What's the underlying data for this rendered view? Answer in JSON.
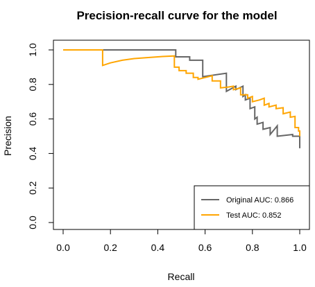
{
  "chart_data": {
    "type": "line",
    "title": "Precision-recall curve for the model",
    "xlabel": "Recall",
    "ylabel": "Precision",
    "xlim": [
      0,
      1
    ],
    "ylim": [
      0,
      1
    ],
    "xticks": [
      "0.0",
      "0.2",
      "0.4",
      "0.6",
      "0.8",
      "1.0"
    ],
    "yticks": [
      "0.0",
      "0.2",
      "0.4",
      "0.6",
      "0.8",
      "1.0"
    ],
    "xtick_values": [
      0,
      0.2,
      0.4,
      0.6,
      0.8,
      1.0
    ],
    "ytick_values": [
      0,
      0.2,
      0.4,
      0.6,
      0.8,
      1.0
    ],
    "legend_position": "bottom-right",
    "series": [
      {
        "name": "Original AUC: 0.866",
        "color": "#666666",
        "points": [
          [
            0.0,
            1.0
          ],
          [
            0.476,
            1.0
          ],
          [
            0.476,
            0.96
          ],
          [
            0.535,
            0.96
          ],
          [
            0.535,
            0.94
          ],
          [
            0.59,
            0.94
          ],
          [
            0.59,
            0.845
          ],
          [
            0.69,
            0.865
          ],
          [
            0.69,
            0.76
          ],
          [
            0.73,
            0.79
          ],
          [
            0.73,
            0.77
          ],
          [
            0.76,
            0.79
          ],
          [
            0.76,
            0.73
          ],
          [
            0.77,
            0.74
          ],
          [
            0.77,
            0.71
          ],
          [
            0.79,
            0.72
          ],
          [
            0.79,
            0.66
          ],
          [
            0.81,
            0.67
          ],
          [
            0.81,
            0.6
          ],
          [
            0.82,
            0.61
          ],
          [
            0.82,
            0.57
          ],
          [
            0.845,
            0.58
          ],
          [
            0.845,
            0.54
          ],
          [
            0.875,
            0.55
          ],
          [
            0.875,
            0.51
          ],
          [
            0.905,
            0.56
          ],
          [
            0.905,
            0.5
          ],
          [
            0.97,
            0.51
          ],
          [
            0.97,
            0.5
          ],
          [
            1.0,
            0.5
          ],
          [
            1.0,
            0.43
          ]
        ]
      },
      {
        "name": "Test AUC: 0.852",
        "color": "#FFA500",
        "points": [
          [
            0.0,
            1.0
          ],
          [
            0.167,
            1.0
          ],
          [
            0.167,
            0.91
          ],
          [
            0.2,
            0.925
          ],
          [
            0.25,
            0.94
          ],
          [
            0.3,
            0.95
          ],
          [
            0.35,
            0.955
          ],
          [
            0.42,
            0.962
          ],
          [
            0.47,
            0.965
          ],
          [
            0.47,
            0.9
          ],
          [
            0.49,
            0.9
          ],
          [
            0.49,
            0.88
          ],
          [
            0.52,
            0.88
          ],
          [
            0.52,
            0.865
          ],
          [
            0.55,
            0.865
          ],
          [
            0.55,
            0.84
          ],
          [
            0.57,
            0.84
          ],
          [
            0.57,
            0.83
          ],
          [
            0.6,
            0.84
          ],
          [
            0.63,
            0.85
          ],
          [
            0.63,
            0.82
          ],
          [
            0.665,
            0.82
          ],
          [
            0.665,
            0.78
          ],
          [
            0.7,
            0.785
          ],
          [
            0.72,
            0.79
          ],
          [
            0.72,
            0.77
          ],
          [
            0.75,
            0.78
          ],
          [
            0.75,
            0.74
          ],
          [
            0.78,
            0.74
          ],
          [
            0.78,
            0.72
          ],
          [
            0.8,
            0.73
          ],
          [
            0.8,
            0.7
          ],
          [
            0.83,
            0.71
          ],
          [
            0.85,
            0.72
          ],
          [
            0.85,
            0.68
          ],
          [
            0.87,
            0.69
          ],
          [
            0.87,
            0.67
          ],
          [
            0.9,
            0.68
          ],
          [
            0.9,
            0.66
          ],
          [
            0.93,
            0.665
          ],
          [
            0.93,
            0.63
          ],
          [
            0.96,
            0.64
          ],
          [
            0.96,
            0.61
          ],
          [
            0.98,
            0.615
          ],
          [
            0.98,
            0.55
          ],
          [
            0.995,
            0.55
          ],
          [
            0.995,
            0.53
          ],
          [
            1.0,
            0.53
          ],
          [
            1.0,
            0.5
          ]
        ]
      }
    ]
  }
}
